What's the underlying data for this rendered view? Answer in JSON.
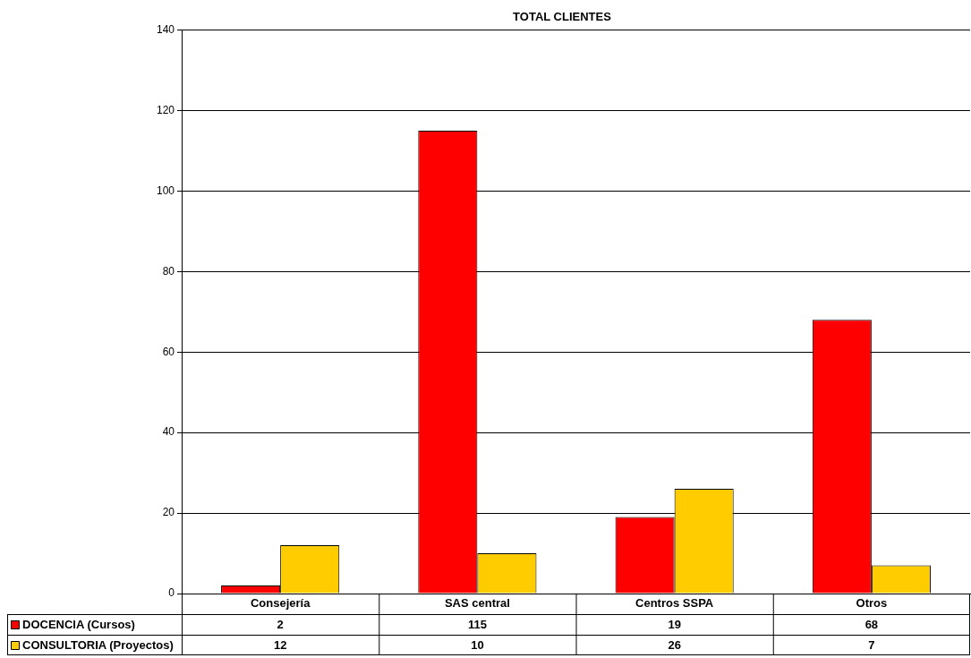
{
  "chart_data": {
    "type": "bar",
    "title": "TOTAL CLIENTES",
    "categories": [
      "Consejería",
      "SAS central",
      "Centros SSPA",
      "Otros"
    ],
    "series": [
      {
        "name": "DOCENCIA (Cursos)",
        "color": "#ff0000",
        "values": [
          2,
          115,
          19,
          68
        ]
      },
      {
        "name": "CONSULTORIA (Proyectos)",
        "color": "#ffcc00",
        "values": [
          12,
          10,
          26,
          7
        ]
      }
    ],
    "ylim": [
      0,
      140
    ],
    "yticks": [
      0,
      20,
      40,
      60,
      80,
      100,
      120,
      140
    ],
    "grid": "y",
    "legend": "bottom left",
    "data_labels": true
  }
}
